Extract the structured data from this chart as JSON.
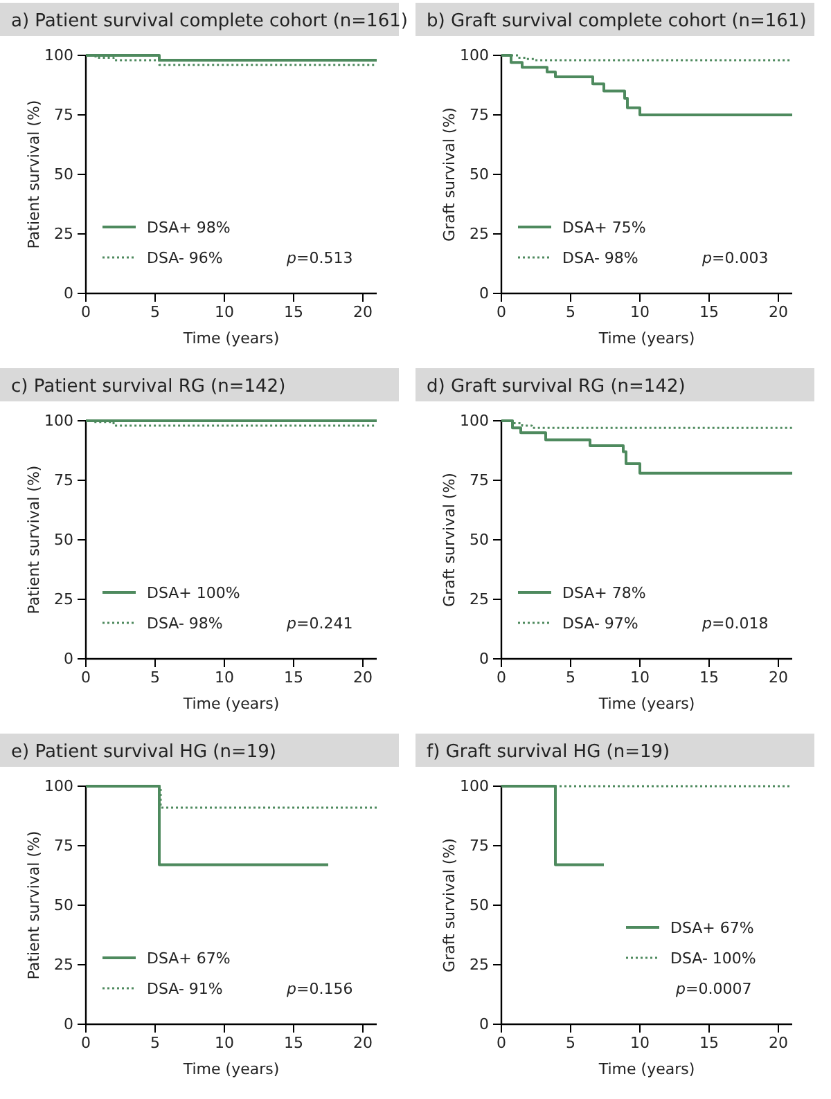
{
  "chart_data": [
    {
      "type": "step",
      "title": "a)   Patient survival complete cohort (n=161)",
      "xlabel": "Time (years)",
      "ylabel": "Patient survival (%)",
      "xlim": [
        0,
        21
      ],
      "ylim": [
        0,
        100
      ],
      "xticks": [
        0,
        5,
        10,
        15,
        20
      ],
      "yticks": [
        0,
        25,
        50,
        75,
        100
      ],
      "legend": "bottom left",
      "annotations": [
        "p=0.513"
      ],
      "series": [
        {
          "name": "DSA+  98%",
          "color": "#4e8a5e",
          "line_style": "solid",
          "x": [
            0,
            5.3,
            21
          ],
          "values": [
            100,
            98,
            98
          ]
        },
        {
          "name": "DSA-   96%",
          "color": "#4e8a5e",
          "line_style": "dotted",
          "x": [
            0,
            0.7,
            2,
            5.3,
            21
          ],
          "values": [
            100,
            99,
            98,
            96,
            96
          ]
        }
      ]
    },
    {
      "type": "step",
      "title": "b)   Graft survival complete cohort (n=161)",
      "xlabel": "Time (years)",
      "ylabel": "Graft survival (%)",
      "xlim": [
        0,
        21
      ],
      "ylim": [
        0,
        100
      ],
      "xticks": [
        0,
        5,
        10,
        15,
        20
      ],
      "yticks": [
        0,
        25,
        50,
        75,
        100
      ],
      "legend": "bottom left",
      "annotations": [
        "p=0.003"
      ],
      "series": [
        {
          "name": "DSA+  75%",
          "color": "#4e8a5e",
          "line_style": "solid",
          "x": [
            0,
            0.7,
            1.5,
            3.3,
            3.9,
            6.6,
            7.4,
            8.9,
            9.1,
            10,
            21
          ],
          "values": [
            100,
            97,
            95,
            93,
            91,
            88,
            85,
            82,
            78,
            75,
            75
          ]
        },
        {
          "name": "DSA-   98%",
          "color": "#4e8a5e",
          "line_style": "dotted",
          "x": [
            0,
            1.2,
            1.8,
            2.4,
            21
          ],
          "values": [
            100,
            99,
            98.5,
            98,
            98
          ]
        }
      ]
    },
    {
      "type": "step",
      "title": "c)   Patient survival RG (n=142)",
      "xlabel": "Time (years)",
      "ylabel": "Patient survival (%)",
      "xlim": [
        0,
        21
      ],
      "ylim": [
        0,
        100
      ],
      "xticks": [
        0,
        5,
        10,
        15,
        20
      ],
      "yticks": [
        0,
        25,
        50,
        75,
        100
      ],
      "legend": "bottom left",
      "annotations": [
        "p=0.241"
      ],
      "series": [
        {
          "name": "DSA+  100%",
          "color": "#4e8a5e",
          "line_style": "solid",
          "x": [
            0,
            21
          ],
          "values": [
            100,
            100
          ]
        },
        {
          "name": "DSA-  98%",
          "color": "#4e8a5e",
          "line_style": "dotted",
          "x": [
            0,
            0.5,
            2,
            21
          ],
          "values": [
            100,
            99.5,
            98,
            98
          ]
        }
      ]
    },
    {
      "type": "step",
      "title": "d)   Graft survival RG (n=142)",
      "xlabel": "Time (years)",
      "ylabel": "Graft survival (%)",
      "xlim": [
        0,
        21
      ],
      "ylim": [
        0,
        100
      ],
      "xticks": [
        0,
        5,
        10,
        15,
        20
      ],
      "yticks": [
        0,
        25,
        50,
        75,
        100
      ],
      "legend": "bottom left",
      "annotations": [
        "p=0.018"
      ],
      "series": [
        {
          "name": "DSA+  78%",
          "color": "#4e8a5e",
          "line_style": "solid",
          "x": [
            0,
            0.8,
            1.4,
            3.2,
            6.4,
            8.8,
            9,
            10,
            21
          ],
          "values": [
            100,
            97,
            95,
            92,
            89.5,
            87,
            82,
            78,
            78
          ]
        },
        {
          "name": "DSA-   97%",
          "color": "#4e8a5e",
          "line_style": "dotted",
          "x": [
            0,
            0.8,
            1.5,
            2.2,
            21
          ],
          "values": [
            100,
            99,
            98,
            97,
            97
          ]
        }
      ]
    },
    {
      "type": "step",
      "title": "e)   Patient survival HG  (n=19)",
      "xlabel": "Time (years)",
      "ylabel": "Patient survival (%)",
      "xlim": [
        0,
        21
      ],
      "ylim": [
        0,
        100
      ],
      "xticks": [
        0,
        5,
        10,
        15,
        20
      ],
      "yticks": [
        0,
        25,
        50,
        75,
        100
      ],
      "legend": "bottom left",
      "annotations": [
        "p=0.156"
      ],
      "series": [
        {
          "name": "DSA+  67%",
          "color": "#4e8a5e",
          "line_style": "solid",
          "x": [
            0,
            5.3,
            17.5
          ],
          "values": [
            100,
            67,
            67
          ]
        },
        {
          "name": "DSA-   91%",
          "color": "#4e8a5e",
          "line_style": "dotted",
          "x": [
            0,
            5.4,
            21
          ],
          "values": [
            100,
            91,
            91
          ]
        }
      ]
    },
    {
      "type": "step",
      "title": "f)   Graft survival HG (n=19)",
      "xlabel": "Time (years)",
      "ylabel": "Graft survival (%)",
      "xlim": [
        0,
        21
      ],
      "ylim": [
        0,
        100
      ],
      "xticks": [
        0,
        5,
        10,
        15,
        20
      ],
      "yticks": [
        0,
        25,
        50,
        75,
        100
      ],
      "legend": "bottom right",
      "annotations": [
        "p=0.0007"
      ],
      "series": [
        {
          "name": "DSA+ 67%",
          "color": "#4e8a5e",
          "line_style": "solid",
          "x": [
            0,
            3.9,
            7.4
          ],
          "values": [
            100,
            67,
            67
          ]
        },
        {
          "name": "DSA-  100%",
          "color": "#4e8a5e",
          "line_style": "dotted",
          "x": [
            0,
            21
          ],
          "values": [
            100,
            100
          ]
        }
      ]
    }
  ]
}
